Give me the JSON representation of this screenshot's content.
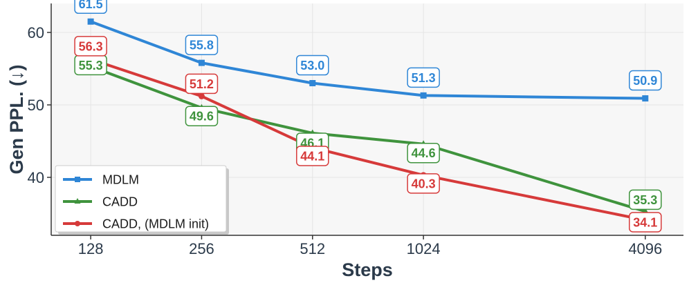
{
  "chart_data": {
    "type": "line",
    "title": "",
    "xlabel": "Steps",
    "ylabel": "Gen PPL. (↓)",
    "categories": [
      "128",
      "256",
      "512",
      "1024",
      "4096"
    ],
    "x": [
      128,
      256,
      512,
      1024,
      4096
    ],
    "x_scale": "log2",
    "xlim": [
      100,
      5200
    ],
    "ylim": [
      32,
      64
    ],
    "yticks": [
      40,
      50,
      60
    ],
    "grid": true,
    "legend_position": "lower-left",
    "series": [
      {
        "name": "MDLM",
        "color": "#2f86d6",
        "marker": "square",
        "values": [
          61.5,
          55.8,
          53.0,
          51.3,
          50.9
        ],
        "labels": [
          "61.5",
          "55.8",
          "53.0",
          "51.3",
          "50.9"
        ]
      },
      {
        "name": "CADD",
        "color": "#3f933d",
        "marker": "triangle",
        "values": [
          55.3,
          49.6,
          46.1,
          44.6,
          35.3
        ],
        "labels": [
          "55.3",
          "49.6",
          "46.1",
          "44.6",
          "35.3"
        ]
      },
      {
        "name": "CADD, (MDLM init)",
        "color": "#d63a3a",
        "marker": "circle",
        "values": [
          56.3,
          51.2,
          44.1,
          40.3,
          34.1
        ],
        "labels": [
          "56.3",
          "51.2",
          "44.1",
          "40.3",
          "34.1"
        ]
      }
    ]
  }
}
